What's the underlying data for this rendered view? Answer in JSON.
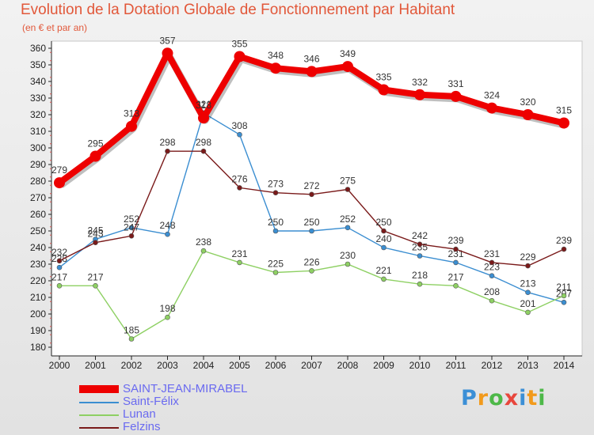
{
  "header": {
    "title": "Evolution de la Dotation Globale de Fonctionnement par Habitant",
    "subtitle": "(en € et par an)"
  },
  "logo": {
    "letters": [
      "P",
      "r",
      "o",
      "x",
      "i",
      "t",
      "i"
    ],
    "colors": [
      "#3b8fd6",
      "#f29a1b",
      "#4db848",
      "#e8463c",
      "#3b8fd6",
      "#f29a1b",
      "#4db848"
    ]
  },
  "chart_data": {
    "type": "line",
    "title": "Evolution de la Dotation Globale de Fonctionnement par Habitant",
    "subtitle": "(en € et par an)",
    "xlabel": "",
    "ylabel": "",
    "x": [
      2000,
      2001,
      2002,
      2003,
      2004,
      2005,
      2006,
      2007,
      2008,
      2009,
      2010,
      2011,
      2012,
      2013,
      2014
    ],
    "ylim": [
      180,
      360
    ],
    "yticks": [
      180,
      190,
      200,
      210,
      220,
      230,
      240,
      250,
      260,
      270,
      280,
      290,
      300,
      310,
      320,
      330,
      340,
      350,
      360
    ],
    "grid": false,
    "legend_position": "bottom-left",
    "series": [
      {
        "name": "SAINT-JEAN-MIRABEL",
        "color": "#ee0000",
        "emphasis": true,
        "values": [
          279,
          295,
          313,
          357,
          318,
          355,
          348,
          346,
          349,
          335,
          332,
          331,
          324,
          320,
          315
        ]
      },
      {
        "name": "Saint-Félix",
        "color": "#3b8ed1",
        "emphasis": false,
        "values": [
          228,
          245,
          252,
          248,
          321,
          308,
          250,
          250,
          252,
          240,
          235,
          231,
          223,
          213,
          207
        ]
      },
      {
        "name": "Lunan",
        "color": "#8ed063",
        "emphasis": false,
        "values": [
          217,
          217,
          185,
          198,
          238,
          231,
          225,
          226,
          230,
          221,
          218,
          217,
          208,
          201,
          211
        ]
      },
      {
        "name": "Felzins",
        "color": "#7a1a1a",
        "emphasis": false,
        "values": [
          232,
          243,
          247,
          298,
          298,
          276,
          273,
          272,
          275,
          250,
          242,
          239,
          231,
          229,
          239
        ]
      }
    ]
  }
}
